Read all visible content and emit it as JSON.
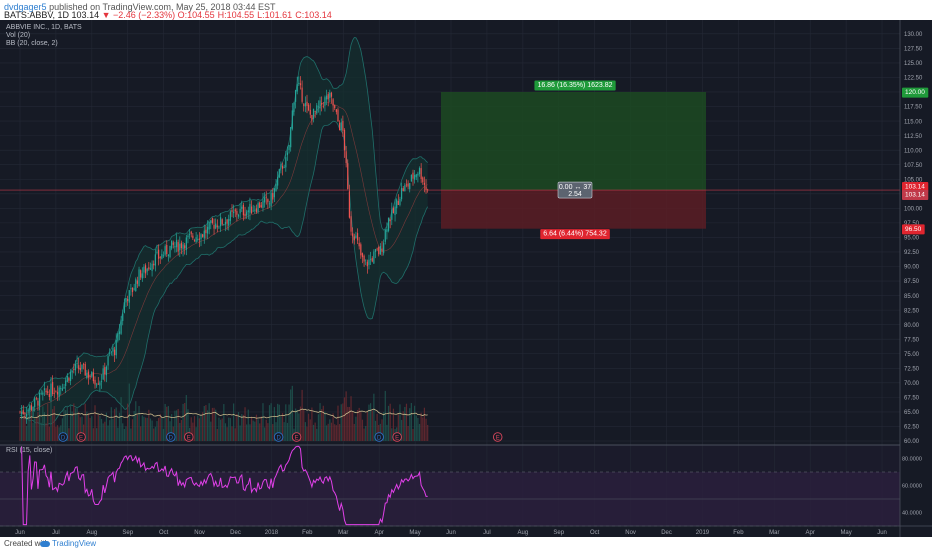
{
  "header": {
    "publisher": "dvdgager5",
    "published_text": "published on TradingView.com, May 25, 2018 03:44 EST",
    "symbol": "BATS:ABBV, 1D",
    "last": "103.14",
    "change": "−2.46 (−2.33%)",
    "open": "O:104.55",
    "high": "H:104.55",
    "low": "L:101.61",
    "close": "C:103.14"
  },
  "legend": {
    "title": "ABBVIE INC., 1D, BATS",
    "vol": "Vol (20)",
    "bb": "BB (20, close, 2)",
    "rsi": "RSI (15, close)"
  },
  "footer": {
    "created": "Created with",
    "brand": "TradingView"
  },
  "colors": {
    "background": "#161a25",
    "grid": "#242936",
    "up": "#26a69a",
    "down": "#ef5350",
    "bb_line": "#1f6f6a",
    "bb_fill": "#14302f",
    "ma_line": "#c8b88a",
    "rsi_line": "#e040e8",
    "rsi_band": "#2a1f3d",
    "target_fill": "#1c4a22",
    "stop_fill": "#5a1d24"
  },
  "chart_data": {
    "type": "candlestick",
    "symbol": "ABBV",
    "timeframe": "1D",
    "ylim": [
      60,
      131
    ],
    "y_ticks": [
      "130.00",
      "127.50",
      "125.00",
      "122.50",
      "120.00",
      "117.50",
      "115.00",
      "112.50",
      "110.00",
      "107.50",
      "105.00",
      "102.50",
      "100.00",
      "97.50",
      "95.00",
      "92.50",
      "90.00",
      "87.50",
      "85.00",
      "82.50",
      "80.00",
      "77.50",
      "75.00",
      "72.50",
      "70.00",
      "67.50",
      "65.00",
      "62.50",
      "60.00"
    ],
    "x_ticks": [
      "Jun",
      "Jul",
      "Aug",
      "Sep",
      "Oct",
      "Nov",
      "Dec",
      "2018",
      "Feb",
      "Mar",
      "Apr",
      "May",
      "Jun",
      "Jul",
      "Aug",
      "Sep",
      "Oct",
      "Nov",
      "Dec",
      "2019",
      "Feb",
      "Mar",
      "Apr",
      "May",
      "Jun"
    ],
    "price_anchors": [
      {
        "month": 0,
        "price": 65.0
      },
      {
        "month": 1,
        "price": 69.0
      },
      {
        "month": 1.6,
        "price": 72.5
      },
      {
        "month": 2.2,
        "price": 70.5
      },
      {
        "month": 2.6,
        "price": 75.5
      },
      {
        "month": 3.0,
        "price": 85.0
      },
      {
        "month": 3.4,
        "price": 89.0
      },
      {
        "month": 3.8,
        "price": 91.5
      },
      {
        "month": 4.3,
        "price": 93.5
      },
      {
        "month": 5.0,
        "price": 95.5
      },
      {
        "month": 5.5,
        "price": 97.5
      },
      {
        "month": 6.2,
        "price": 99.5
      },
      {
        "month": 6.9,
        "price": 101.0
      },
      {
        "month": 7.4,
        "price": 108.0
      },
      {
        "month": 7.7,
        "price": 121.0
      },
      {
        "month": 8.1,
        "price": 116.0
      },
      {
        "month": 8.6,
        "price": 119.0
      },
      {
        "month": 8.95,
        "price": 114.0
      },
      {
        "month": 9.25,
        "price": 96.0
      },
      {
        "month": 9.6,
        "price": 90.5
      },
      {
        "month": 10.0,
        "price": 92.5
      },
      {
        "month": 10.3,
        "price": 98.5
      },
      {
        "month": 10.7,
        "price": 103.5
      },
      {
        "month": 11.1,
        "price": 106.5
      },
      {
        "month": 11.35,
        "price": 103.14
      }
    ],
    "earnings_markers": [
      {
        "label": "D",
        "month": 1.2
      },
      {
        "label": "E",
        "month": 1.7
      },
      {
        "label": "D",
        "month": 4.2
      },
      {
        "label": "E",
        "month": 4.7
      },
      {
        "label": "D",
        "month": 7.2
      },
      {
        "label": "E",
        "month": 7.7
      },
      {
        "label": "D",
        "month": 10.0
      },
      {
        "label": "E",
        "month": 10.5
      },
      {
        "label": "E",
        "month": 13.3
      }
    ],
    "last_price": 103.14,
    "last_price_label": "103.14",
    "last_price_label_2": "103.14",
    "position": {
      "entry": 103.14,
      "target": 120.0,
      "stop": 96.5,
      "target_label": "120.00",
      "stop_label": "96.50",
      "target_text": "16.86 (16.35%) 1623.82",
      "stop_text": "6.64 (6.44%) 754.32",
      "ratio_line1": "0.00 ↔ 37",
      "ratio_line2": "2.54"
    },
    "rsi": {
      "period": 15,
      "y_ticks": [
        "80.0000",
        "60.0000",
        "40.0000"
      ],
      "ylim": [
        30,
        90
      ]
    }
  }
}
